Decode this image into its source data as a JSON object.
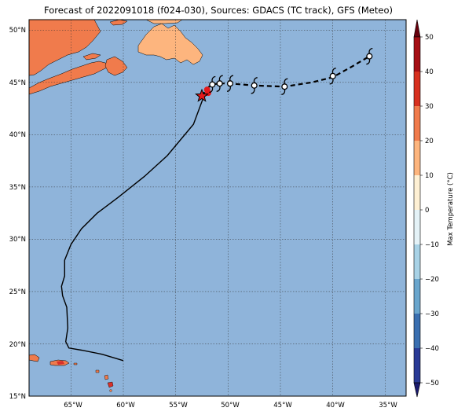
{
  "title": "Forecast of 2022091018 (f024-030), Sources: GDACS (TC track), GFS (Meteo)",
  "colorbar": {
    "label": "Max Temperature (°C)",
    "ticks": [
      "50",
      "40",
      "30",
      "20",
      "10",
      "0",
      "−10",
      "−20",
      "−30",
      "−40",
      "−50"
    ]
  },
  "axes": {
    "lat_labels": [
      "50°N",
      "45°N",
      "40°N",
      "35°N",
      "30°N",
      "25°N",
      "20°N",
      "15°N"
    ],
    "lon_labels": [
      "65°W",
      "60°W",
      "55°W",
      "50°W",
      "45°W",
      "40°W",
      "35°W"
    ]
  },
  "map": {
    "ocean_color": "#8fb4da",
    "extent": {
      "lon_min": -69,
      "lon_max": -33,
      "lat_min": 15,
      "lat_max": 51
    }
  },
  "track": {
    "past": [
      [
        -60.0,
        18.4
      ],
      [
        -62.0,
        19.0
      ],
      [
        -64.0,
        19.4
      ],
      [
        -65.2,
        19.6
      ],
      [
        -65.5,
        20.2
      ],
      [
        -65.3,
        21.5
      ],
      [
        -65.4,
        23.5
      ],
      [
        -65.8,
        24.6
      ],
      [
        -65.9,
        25.5
      ],
      [
        -65.6,
        26.5
      ],
      [
        -65.6,
        28.0
      ],
      [
        -65.0,
        29.5
      ],
      [
        -64.0,
        31.0
      ],
      [
        -62.5,
        32.5
      ],
      [
        -60.5,
        34.0
      ],
      [
        -58.0,
        36.0
      ],
      [
        -55.8,
        38.0
      ],
      [
        -53.3,
        41.0
      ],
      [
        -52.3,
        43.7
      ]
    ],
    "current": [
      -52.5,
      43.7
    ],
    "forecast": [
      [
        -52.0,
        44.4
      ],
      [
        -51.6,
        44.8
      ],
      [
        -50.8,
        44.9
      ],
      [
        -49.8,
        44.9
      ],
      [
        -47.5,
        44.7
      ],
      [
        -44.6,
        44.6
      ],
      [
        -42.0,
        45.0
      ],
      [
        -40.0,
        45.5
      ],
      [
        -38.2,
        46.5
      ],
      [
        -36.5,
        47.5
      ]
    ],
    "storm_symbols": [
      [
        -51.5,
        44.8
      ],
      [
        -50.8,
        44.9
      ],
      [
        -49.8,
        44.9
      ],
      [
        -47.5,
        44.7
      ],
      [
        -44.6,
        44.6
      ],
      [
        -40.0,
        45.6
      ],
      [
        -36.5,
        47.5
      ]
    ],
    "red_dots": [
      [
        -52.0,
        44.3
      ],
      [
        -51.9,
        44.0
      ]
    ]
  }
}
